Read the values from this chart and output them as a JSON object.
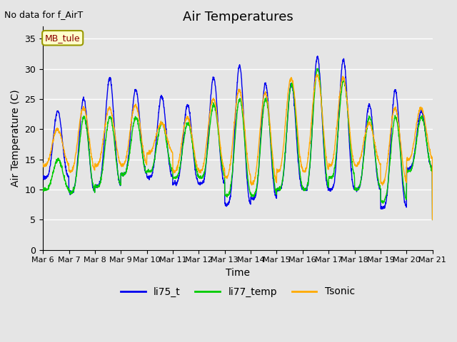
{
  "title": "Air Temperatures",
  "xlabel": "Time",
  "ylabel": "Air Temperature (C)",
  "ylim": [
    0,
    37
  ],
  "yticks": [
    0,
    5,
    10,
    15,
    20,
    25,
    30,
    35
  ],
  "plot_bg_color": "#e5e5e5",
  "grid_color": "white",
  "annotation_text": "No data for f_AirT",
  "box_label": "MB_tule",
  "line_colors": {
    "li75_t": "#0000ee",
    "li77_temp": "#00cc00",
    "Tsonic": "#ffaa00"
  },
  "xtick_labels": [
    "Mar 6",
    "Mar 7",
    "Mar 8",
    "Mar 9",
    "Mar 10",
    "Mar 11",
    "Mar 12",
    "Mar 13",
    "Mar 14",
    "Mar 15",
    "Mar 16",
    "Mar 17",
    "Mar 18",
    "Mar 19",
    "Mar 20",
    "Mar 21"
  ],
  "n_days": 15,
  "title_fontsize": 13,
  "label_fontsize": 10,
  "tick_fontsize": 9,
  "li75_daily": {
    "mins": [
      12,
      9.5,
      10.5,
      12.5,
      12,
      11,
      11,
      7.5,
      8.5,
      10,
      10,
      10,
      10,
      7,
      13.5
    ],
    "maxs": [
      23,
      25,
      28.5,
      26.5,
      25.5,
      24,
      28.5,
      30.5,
      27.5,
      27.5,
      32,
      31.5,
      24,
      26.5,
      23
    ]
  },
  "li77_daily": {
    "mins": [
      10,
      9.5,
      10.5,
      12.5,
      13,
      12,
      12,
      9,
      9,
      10,
      10,
      12,
      10,
      8,
      13
    ],
    "maxs": [
      15,
      22,
      22,
      22,
      21,
      21,
      24,
      25,
      25,
      27.5,
      30,
      28,
      22,
      22,
      22
    ]
  },
  "tsonic_daily": {
    "mins": [
      14,
      13,
      14,
      14,
      16,
      13,
      13,
      12,
      11,
      13,
      13,
      14,
      14,
      11,
      15
    ],
    "maxs": [
      20,
      23.5,
      23.5,
      24,
      21,
      22,
      25,
      26.5,
      26,
      28.5,
      29,
      28.5,
      21,
      23.5,
      23.5
    ]
  }
}
